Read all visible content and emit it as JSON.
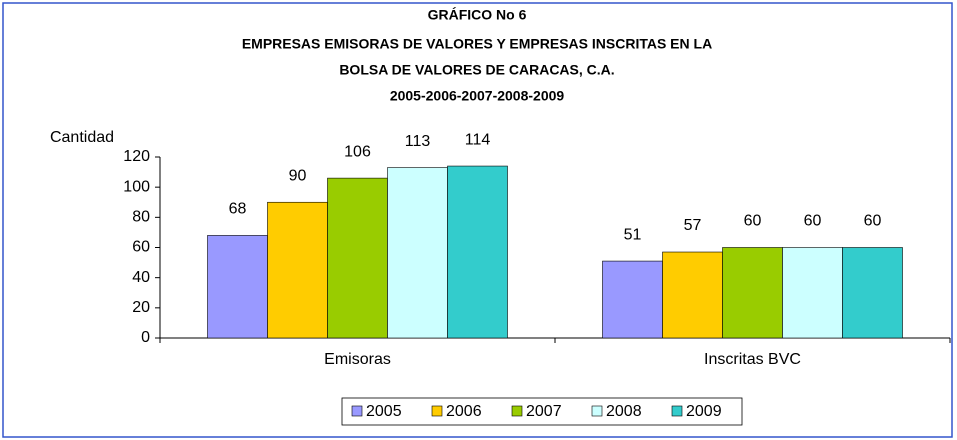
{
  "chart_data": {
    "type": "bar",
    "title": [
      "GRÁFICO No 6",
      "EMPRESAS EMISORAS DE VALORES Y EMPRESAS INSCRITAS EN LA",
      "BOLSA DE VALORES DE CARACAS, C.A.",
      "2005-2006-2007-2008-2009"
    ],
    "y_label": "Cantidad",
    "categories": [
      "Emisoras",
      "Inscritas BVC"
    ],
    "series": [
      {
        "name": "2005",
        "color": "#9999ff",
        "values": [
          68,
          51
        ]
      },
      {
        "name": "2006",
        "color": "#ffcc00",
        "values": [
          90,
          57
        ]
      },
      {
        "name": "2007",
        "color": "#99cc00",
        "values": [
          106,
          60
        ]
      },
      {
        "name": "2008",
        "color": "#ccffff",
        "values": [
          113,
          60
        ]
      },
      {
        "name": "2009",
        "color": "#33cccc",
        "values": [
          114,
          60
        ]
      }
    ],
    "ylim": [
      0,
      120
    ],
    "yticks": [
      0,
      20,
      40,
      60,
      80,
      100,
      120
    ],
    "grid": false,
    "legend": "bottom",
    "data_labels": true
  }
}
